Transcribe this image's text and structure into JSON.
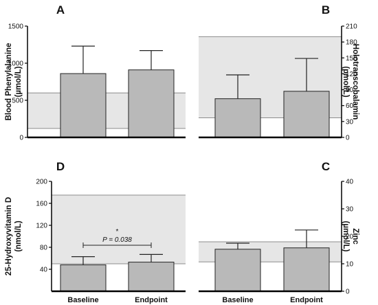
{
  "chart_data": [
    {
      "id": "A",
      "type": "bar",
      "panel_label": "A",
      "ylabel": "Blood Phenylalanine (µmol/L)",
      "ylabel_lines": [
        "Blood Phenylalanine",
        "(µmol/L)"
      ],
      "axis_side": "left",
      "ylim": [
        0,
        1500
      ],
      "yticks": [
        0,
        500,
        1000,
        1500
      ],
      "categories": [
        "Baseline",
        "Endpoint"
      ],
      "values": [
        860,
        910
      ],
      "errors": [
        370,
        260
      ],
      "reference_range": [
        120,
        600
      ],
      "show_category_labels": false
    },
    {
      "id": "B",
      "type": "bar",
      "panel_label": "B",
      "ylabel": "Holotranscobalamin (pmol/L)",
      "ylabel_lines": [
        "Holotranscobalamin",
        "(pmol/L)"
      ],
      "axis_side": "right",
      "ylim": [
        0,
        210
      ],
      "yticks": [
        0,
        30,
        60,
        90,
        120,
        150,
        180,
        210
      ],
      "categories": [
        "Baseline",
        "Endpoint"
      ],
      "values": [
        73,
        87
      ],
      "errors": [
        45,
        62
      ],
      "reference_range": [
        37,
        190
      ],
      "show_category_labels": false
    },
    {
      "id": "D",
      "type": "bar",
      "panel_label": "D",
      "ylabel": "25-Hydroxyvitamin D (nmol/L)",
      "ylabel_lines": [
        "25-Hydroxyvitamin D",
        "(nmol/L)"
      ],
      "axis_side": "left",
      "ylim": [
        0,
        200
      ],
      "yticks": [
        40,
        80,
        120,
        160,
        200
      ],
      "categories": [
        "Baseline",
        "Endpoint"
      ],
      "values": [
        48,
        53
      ],
      "errors": [
        15,
        14
      ],
      "reference_range": [
        50,
        175
      ],
      "annotation": "P = 0.038",
      "significance_marker": "*",
      "show_category_labels": true
    },
    {
      "id": "C",
      "type": "bar",
      "panel_label": "C",
      "ylabel": "Zinc (µmol/L)",
      "ylabel_lines": [
        "Zinc",
        "(µmol/L)"
      ],
      "axis_side": "right",
      "ylim": [
        0,
        40
      ],
      "yticks": [
        0,
        10,
        20,
        30,
        40
      ],
      "categories": [
        "Baseline",
        "Endpoint"
      ],
      "values": [
        15.3,
        15.8
      ],
      "errors": [
        2.2,
        6.5
      ],
      "reference_range": [
        10.7,
        18
      ],
      "show_category_labels": true
    }
  ]
}
